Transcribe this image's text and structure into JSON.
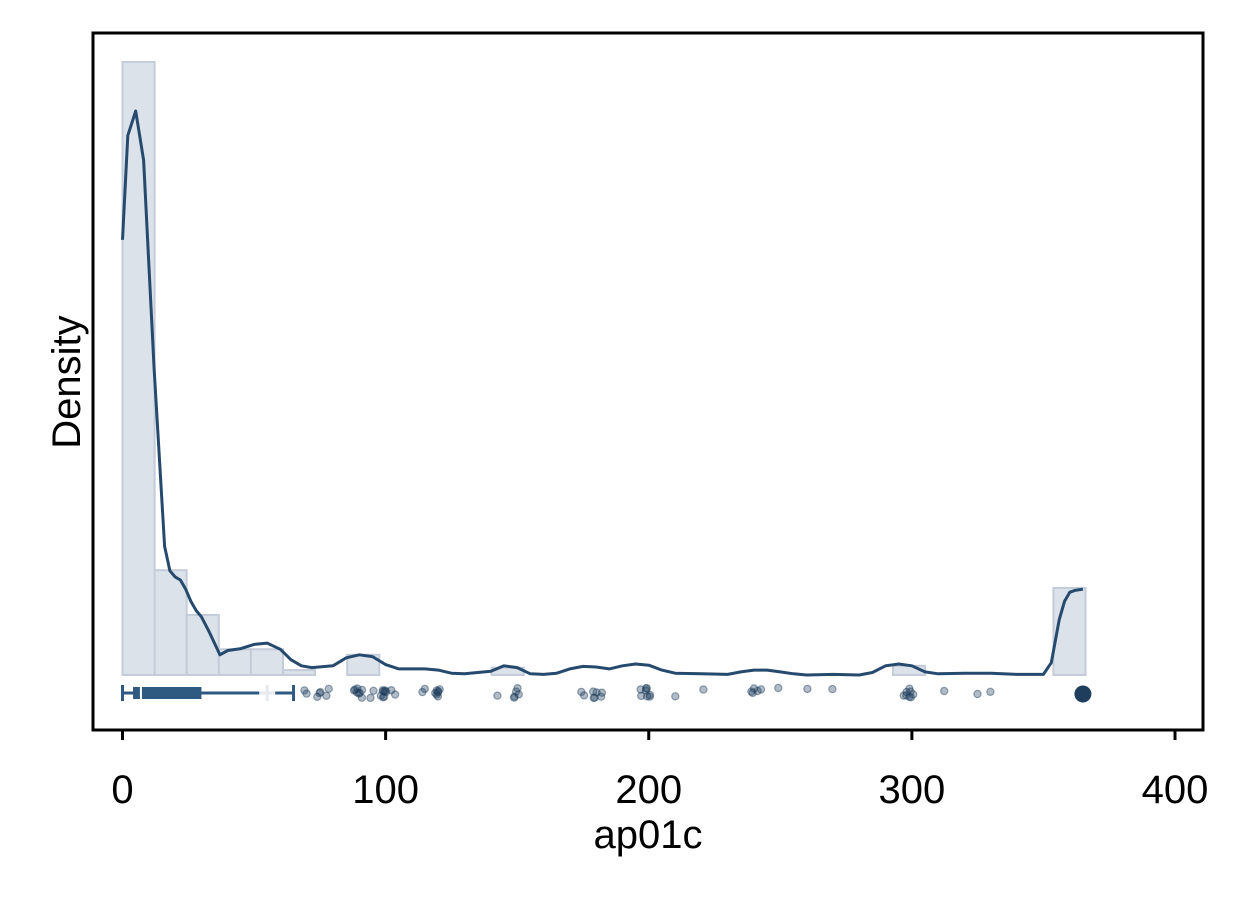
{
  "chart_data": {
    "type": "histogram",
    "xlabel": "ap01c",
    "ylabel": "Density",
    "xlim": [
      -10,
      410
    ],
    "x_ticks": [
      0,
      100,
      200,
      300,
      400
    ],
    "x_tick_labels": [
      "0",
      "100",
      "200",
      "300",
      "400"
    ],
    "y_tick_labels_shown": false,
    "grid": false,
    "legend": "none",
    "histogram": {
      "bin_width": 12.2,
      "bin_starts": [
        0,
        12.2,
        24.4,
        36.6,
        48.8,
        61.0,
        85.4,
        140.3,
        292.8,
        353.8
      ],
      "relative_heights": [
        1.0,
        0.171,
        0.098,
        0.042,
        0.042,
        0.008,
        0.033,
        0.012,
        0.015,
        0.142
      ]
    },
    "density_curve": {
      "x": [
        0,
        2,
        5,
        8,
        12,
        16,
        18,
        20,
        22,
        24,
        26,
        28,
        30,
        33,
        37,
        40,
        45,
        50,
        55,
        60,
        64,
        68,
        72,
        80,
        85,
        90,
        95,
        100,
        105,
        110,
        115,
        120,
        125,
        130,
        135,
        140,
        145,
        150,
        155,
        160,
        165,
        170,
        175,
        180,
        185,
        190,
        195,
        200,
        205,
        210,
        220,
        230,
        235,
        240,
        245,
        250,
        255,
        260,
        270,
        280,
        285,
        290,
        295,
        300,
        305,
        310,
        320,
        330,
        340,
        350,
        353,
        356,
        358,
        360,
        362,
        365
      ],
      "relative_density": [
        0.71,
        0.88,
        0.92,
        0.84,
        0.5,
        0.21,
        0.17,
        0.16,
        0.155,
        0.14,
        0.12,
        0.105,
        0.095,
        0.07,
        0.033,
        0.04,
        0.043,
        0.05,
        0.052,
        0.042,
        0.025,
        0.015,
        0.012,
        0.015,
        0.028,
        0.033,
        0.03,
        0.017,
        0.01,
        0.01,
        0.01,
        0.008,
        0.003,
        0.002,
        0.004,
        0.006,
        0.015,
        0.012,
        0.002,
        0.001,
        0.003,
        0.01,
        0.014,
        0.013,
        0.01,
        0.015,
        0.018,
        0.016,
        0.008,
        0.003,
        0.002,
        0.001,
        0.005,
        0.008,
        0.008,
        0.005,
        0.002,
        0.0,
        0.001,
        0.0,
        0.004,
        0.015,
        0.018,
        0.015,
        0.005,
        0.002,
        0.003,
        0.003,
        0.001,
        0.001,
        0.02,
        0.09,
        0.12,
        0.135,
        0.138,
        0.14
      ]
    },
    "box_plot": {
      "whisker_low": 0,
      "q1": 4,
      "median": 7,
      "q3": 30,
      "whisker_high": 65,
      "mean": 55
    },
    "outliers": [
      {
        "x": 70,
        "n": 2
      },
      {
        "x": 75,
        "n": 3
      },
      {
        "x": 78,
        "n": 2
      },
      {
        "x": 88,
        "n": 2
      },
      {
        "x": 90,
        "n": 6
      },
      {
        "x": 95,
        "n": 2
      },
      {
        "x": 99,
        "n": 3
      },
      {
        "x": 100,
        "n": 5
      },
      {
        "x": 103,
        "n": 2
      },
      {
        "x": 115,
        "n": 2
      },
      {
        "x": 119,
        "n": 3
      },
      {
        "x": 120,
        "n": 4
      },
      {
        "x": 143,
        "n": 1
      },
      {
        "x": 148,
        "n": 2
      },
      {
        "x": 150,
        "n": 3
      },
      {
        "x": 175,
        "n": 2
      },
      {
        "x": 180,
        "n": 4
      },
      {
        "x": 182,
        "n": 2
      },
      {
        "x": 198,
        "n": 3
      },
      {
        "x": 200,
        "n": 5
      },
      {
        "x": 210,
        "n": 1
      },
      {
        "x": 220,
        "n": 1
      },
      {
        "x": 240,
        "n": 3
      },
      {
        "x": 242,
        "n": 2
      },
      {
        "x": 250,
        "n": 1
      },
      {
        "x": 260,
        "n": 1
      },
      {
        "x": 270,
        "n": 1
      },
      {
        "x": 298,
        "n": 3
      },
      {
        "x": 300,
        "n": 5
      },
      {
        "x": 313,
        "n": 1
      },
      {
        "x": 326,
        "n": 1
      },
      {
        "x": 330,
        "n": 1
      },
      {
        "x": 365,
        "n": 40
      }
    ],
    "colors": {
      "bar_fill": "#dce2ea",
      "bar_stroke": "#c3ccd8",
      "curve": "#254a6e",
      "box": "#2e5a82",
      "points": "#1f3e5e"
    }
  }
}
